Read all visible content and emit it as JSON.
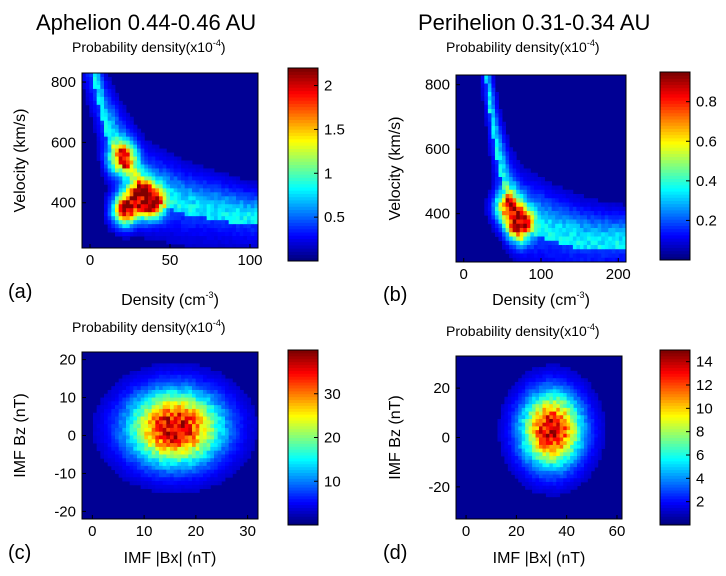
{
  "columns": {
    "left_title": "Aphelion 0.44-0.46 AU",
    "right_title": "Perihelion 0.31-0.34 AU"
  },
  "chart_data": [
    {
      "type": "heatmap",
      "panel_label": "(a)",
      "title": "Probability density(x10",
      "title_exponent": "-4",
      "title_suffix": ")",
      "xlabel": "Density (cm",
      "xlabel_exponent": "-3",
      "xlabel_suffix": ")",
      "ylabel": "Velocity (km/s)",
      "xlim": [
        -5,
        105
      ],
      "ylim": [
        250,
        830
      ],
      "xticks": [
        0,
        50,
        100
      ],
      "yticks": [
        400,
        600,
        800
      ],
      "colorbar": {
        "range": [
          0,
          2.2
        ],
        "ticks": [
          0.5,
          1,
          1.5,
          2
        ],
        "tick_labels": [
          "0.5",
          "1",
          "1.5",
          "2"
        ]
      },
      "density_model": {
        "curve": "hyperbolic",
        "samples": [
          [
            3,
            800
          ],
          [
            10,
            640
          ],
          [
            20,
            540
          ],
          [
            35,
            430
          ],
          [
            60,
            380
          ],
          [
            100,
            345
          ]
        ],
        "peaks": [
          {
            "x": 20,
            "y": 545,
            "value": 1.6
          },
          {
            "x": 22,
            "y": 375,
            "value": 2.0
          },
          {
            "x": 38,
            "y": 400,
            "value": 2.1
          },
          {
            "x": 30,
            "y": 430,
            "value": 1.4
          }
        ]
      }
    },
    {
      "type": "heatmap",
      "panel_label": "(b)",
      "title": "Probability density(x10",
      "title_exponent": "-4",
      "title_suffix": ")",
      "xlabel": "Density (cm",
      "xlabel_exponent": "-3",
      "xlabel_suffix": ")",
      "ylabel": "Velocity (km/s)",
      "xlim": [
        -10,
        210
      ],
      "ylim": [
        250,
        830
      ],
      "xticks": [
        0,
        100,
        200
      ],
      "yticks": [
        400,
        600,
        800
      ],
      "colorbar": {
        "range": [
          0,
          0.95
        ],
        "ticks": [
          0.2,
          0.4,
          0.6,
          0.8
        ],
        "tick_labels": [
          "0.2",
          "0.4",
          "0.6",
          "0.8"
        ]
      },
      "density_model": {
        "curve": "hyperbolic",
        "samples": [
          [
            35,
            700
          ],
          [
            45,
            560
          ],
          [
            60,
            430
          ],
          [
            75,
            370
          ],
          [
            120,
            330
          ],
          [
            160,
            305
          ]
        ],
        "peaks": [
          {
            "x": 72,
            "y": 365,
            "value": 0.9
          },
          {
            "x": 55,
            "y": 420,
            "value": 0.6
          }
        ]
      }
    },
    {
      "type": "heatmap",
      "panel_label": "(c)",
      "title": "Probability density(x10",
      "title_exponent": "-4",
      "title_suffix": ")",
      "xlabel": "IMF |Bx| (nT)",
      "ylabel": "IMF Bz (nT)",
      "xlim": [
        -2,
        32
      ],
      "ylim": [
        -22,
        22
      ],
      "xticks": [
        0,
        10,
        20,
        30
      ],
      "yticks": [
        -20,
        -10,
        0,
        10,
        20
      ],
      "colorbar": {
        "range": [
          0,
          40
        ],
        "ticks": [
          10,
          20,
          30
        ],
        "tick_labels": [
          "10",
          "20",
          "30"
        ]
      },
      "density_model": {
        "curve": "blob",
        "center": [
          16,
          2
        ],
        "spread": [
          6,
          6.5
        ],
        "peak_value": 38
      }
    },
    {
      "type": "heatmap",
      "panel_label": "(d)",
      "title": "Probability density(x10",
      "title_exponent": "-4",
      "title_suffix": ")",
      "xlabel": "IMF |Bx| (nT)",
      "ylabel": "IMF Bz (nT)",
      "xlim": [
        -4,
        62
      ],
      "ylim": [
        -33,
        33
      ],
      "xticks": [
        0,
        20,
        40,
        60
      ],
      "yticks": [
        -20,
        0,
        20
      ],
      "colorbar": {
        "range": [
          0,
          15
        ],
        "ticks": [
          2,
          4,
          6,
          8,
          10,
          12,
          14
        ],
        "tick_labels": [
          "2",
          "4",
          "6",
          "8",
          "10",
          "12",
          "14"
        ]
      },
      "density_model": {
        "curve": "blob",
        "center": [
          34,
          3
        ],
        "spread": [
          8,
          10
        ],
        "peak_value": 14
      }
    }
  ]
}
